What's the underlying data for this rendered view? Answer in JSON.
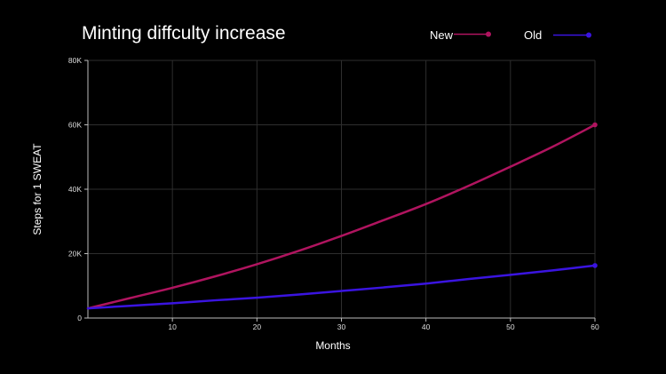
{
  "chart_data": {
    "type": "line",
    "title": "Minting diffculty increase",
    "xlabel": "Months",
    "ylabel": "Steps for 1 SWEAT",
    "xlim": [
      0,
      60
    ],
    "ylim": [
      0,
      80000
    ],
    "x_ticks": [
      10,
      20,
      30,
      40,
      50,
      60
    ],
    "x_tick_labels": [
      "10",
      "20",
      "30",
      "40",
      "50",
      "60"
    ],
    "y_ticks": [
      0,
      20000,
      40000,
      60000,
      80000
    ],
    "y_tick_labels": [
      "0",
      "20K",
      "40K",
      "60K",
      "80K"
    ],
    "grid": true,
    "legend_position": "top-right",
    "series": [
      {
        "name": "New",
        "color": "#b0145f",
        "x": [
          0,
          5,
          10,
          15,
          20,
          25,
          30,
          35,
          40,
          45,
          50,
          55,
          60
        ],
        "values": [
          3000,
          6200,
          9400,
          12900,
          16700,
          20900,
          25500,
          30400,
          35400,
          41000,
          47000,
          53200,
          60000
        ]
      },
      {
        "name": "Old",
        "color": "#3a14e0",
        "x": [
          0,
          5,
          10,
          15,
          20,
          25,
          30,
          35,
          40,
          45,
          50,
          55,
          60
        ],
        "values": [
          3000,
          3800,
          4600,
          5500,
          6300,
          7300,
          8400,
          9500,
          10700,
          12100,
          13400,
          14800,
          16300
        ]
      }
    ]
  }
}
